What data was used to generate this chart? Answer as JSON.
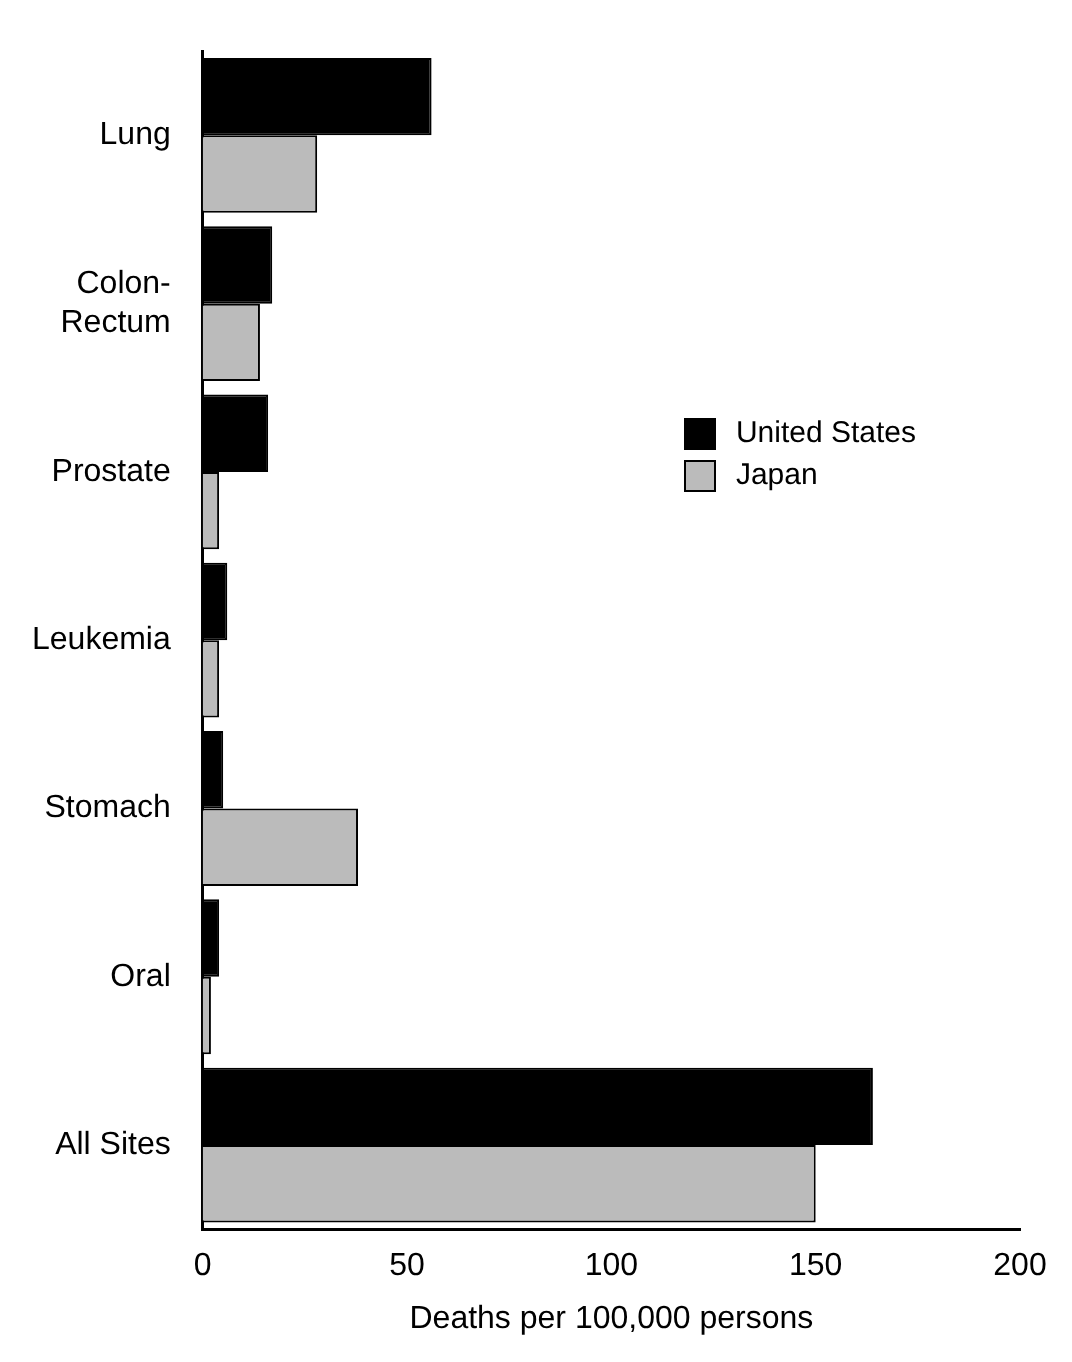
{
  "chart_data": {
    "type": "bar",
    "orientation": "horizontal",
    "xlabel": "Deaths per 100,000 persons",
    "categories": [
      "Lung",
      "Colon-\nRectum",
      "Prostate",
      "Leukemia",
      "Stomach",
      "Oral",
      "All Sites"
    ],
    "series": [
      {
        "name": "United States",
        "color": "#000000",
        "values": [
          56,
          17,
          16,
          6,
          5,
          4,
          164
        ]
      },
      {
        "name": "Japan",
        "color": "#bbbbbb",
        "values": [
          28,
          14,
          4,
          4,
          38,
          2,
          150
        ]
      }
    ],
    "xlim": [
      0,
      200
    ],
    "xticks": [
      0,
      50,
      100,
      150,
      200
    ],
    "grid": false,
    "legend": "right"
  }
}
